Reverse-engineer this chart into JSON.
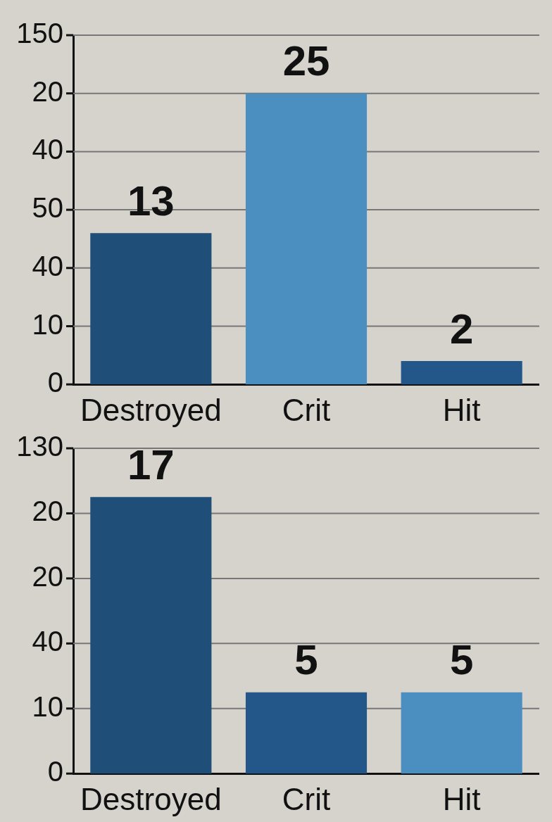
{
  "chart_data": [
    {
      "type": "bar",
      "categories": [
        "Destroyed",
        "Crit",
        "Hit"
      ],
      "values": [
        13,
        25,
        2
      ],
      "colors": [
        "#1f4e79",
        "#4a8fc0",
        "#23578a"
      ],
      "annotations": [
        "150",
        "20",
        "40",
        "50",
        "40",
        "10",
        "0"
      ],
      "grid": "y",
      "data_labels": true
    },
    {
      "type": "bar",
      "categories": [
        "Destroyed",
        "Crit",
        "Hit"
      ],
      "values": [
        17,
        5,
        5
      ],
      "colors": [
        "#1f4e79",
        "#23578a",
        "#4a8fc0"
      ],
      "annotations": [
        "130",
        "20",
        "20",
        "40",
        "10",
        "0"
      ],
      "grid": "y",
      "data_labels": true
    }
  ]
}
